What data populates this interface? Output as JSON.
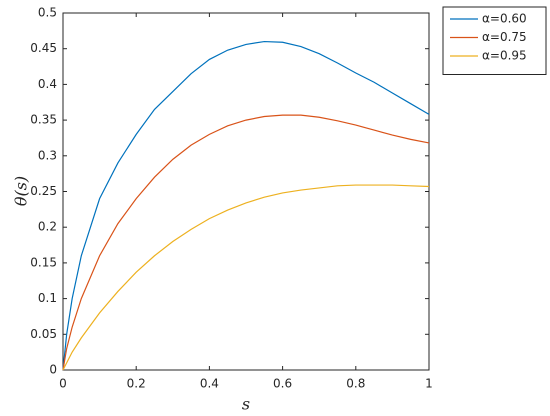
{
  "chart_data": {
    "type": "line",
    "x_label": "s",
    "y_label": "θ(s)",
    "x": [
      0,
      0.01,
      0.025,
      0.05,
      0.1,
      0.15,
      0.2,
      0.25,
      0.3,
      0.35,
      0.4,
      0.45,
      0.5,
      0.55,
      0.6,
      0.65,
      0.7,
      0.75,
      0.8,
      0.85,
      0.9,
      0.95,
      1
    ],
    "series": [
      {
        "name": "α=0.60",
        "color": "#0072bd",
        "values": [
          0,
          0.05,
          0.1,
          0.16,
          0.24,
          0.29,
          0.33,
          0.365,
          0.39,
          0.415,
          0.435,
          0.448,
          0.456,
          0.46,
          0.459,
          0.453,
          0.443,
          0.43,
          0.416,
          0.403,
          0.388,
          0.373,
          0.358
        ]
      },
      {
        "name": "α=0.75",
        "color": "#d95319",
        "values": [
          0,
          0.03,
          0.06,
          0.1,
          0.16,
          0.205,
          0.24,
          0.27,
          0.295,
          0.315,
          0.33,
          0.342,
          0.35,
          0.355,
          0.357,
          0.357,
          0.354,
          0.349,
          0.343,
          0.336,
          0.329,
          0.323,
          0.318
        ]
      },
      {
        "name": "α=0.95",
        "color": "#edb120",
        "values": [
          0,
          0.01,
          0.025,
          0.045,
          0.08,
          0.11,
          0.137,
          0.16,
          0.18,
          0.197,
          0.212,
          0.224,
          0.234,
          0.242,
          0.248,
          0.252,
          0.255,
          0.258,
          0.259,
          0.259,
          0.259,
          0.258,
          0.257
        ]
      }
    ],
    "xlim": [
      0,
      1
    ],
    "xticks": [
      0,
      0.2,
      0.4,
      0.6,
      0.8,
      1
    ],
    "ylim": [
      0,
      0.5
    ],
    "yticks": [
      0,
      0.05,
      0.1,
      0.15,
      0.2,
      0.25,
      0.3,
      0.35,
      0.4,
      0.45,
      0.5
    ],
    "legend": "outside-right"
  }
}
